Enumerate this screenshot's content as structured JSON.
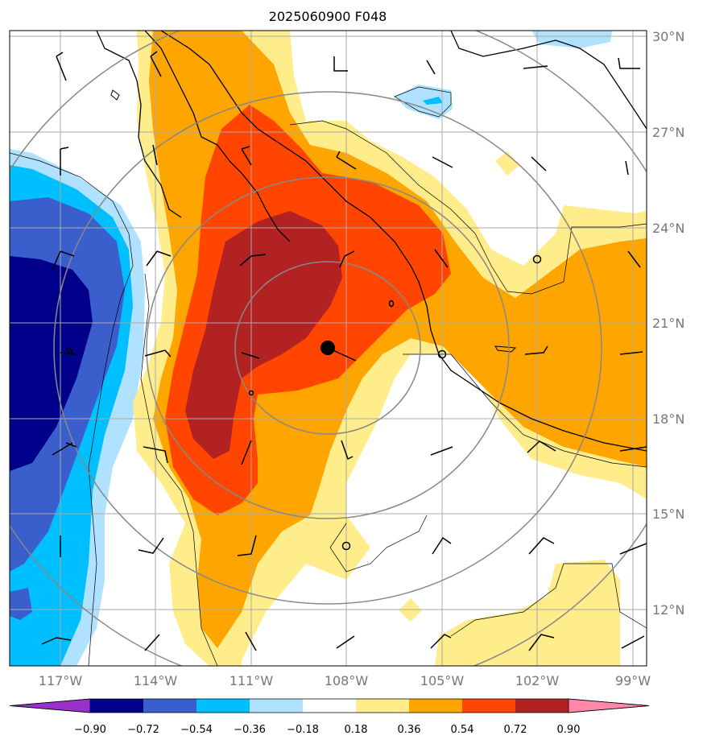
{
  "title": "2025060900 F048",
  "latitude_labels": [
    "30°N",
    "27°N",
    "24°N",
    "21°N",
    "18°N",
    "15°N",
    "12°N"
  ],
  "longitude_labels": [
    "117°W",
    "114°W",
    "111°W",
    "108°W",
    "105°W",
    "102°W",
    "99°W"
  ],
  "colorbar": {
    "labels": [
      "−0.90",
      "−0.72",
      "−0.54",
      "−0.36",
      "−0.18",
      "0.18",
      "0.36",
      "0.54",
      "0.72",
      "0.90"
    ],
    "colors": [
      "#9932CC",
      "#00008B",
      "#3A5FCD",
      "#00BFFF",
      "#B0E2FF",
      "#FFFFFF",
      "#FFEC8B",
      "#FFA500",
      "#FF4500",
      "#B22222",
      "#FF88AA"
    ]
  },
  "storm_center": {
    "lon": -108.6,
    "lat": 20.2
  }
}
